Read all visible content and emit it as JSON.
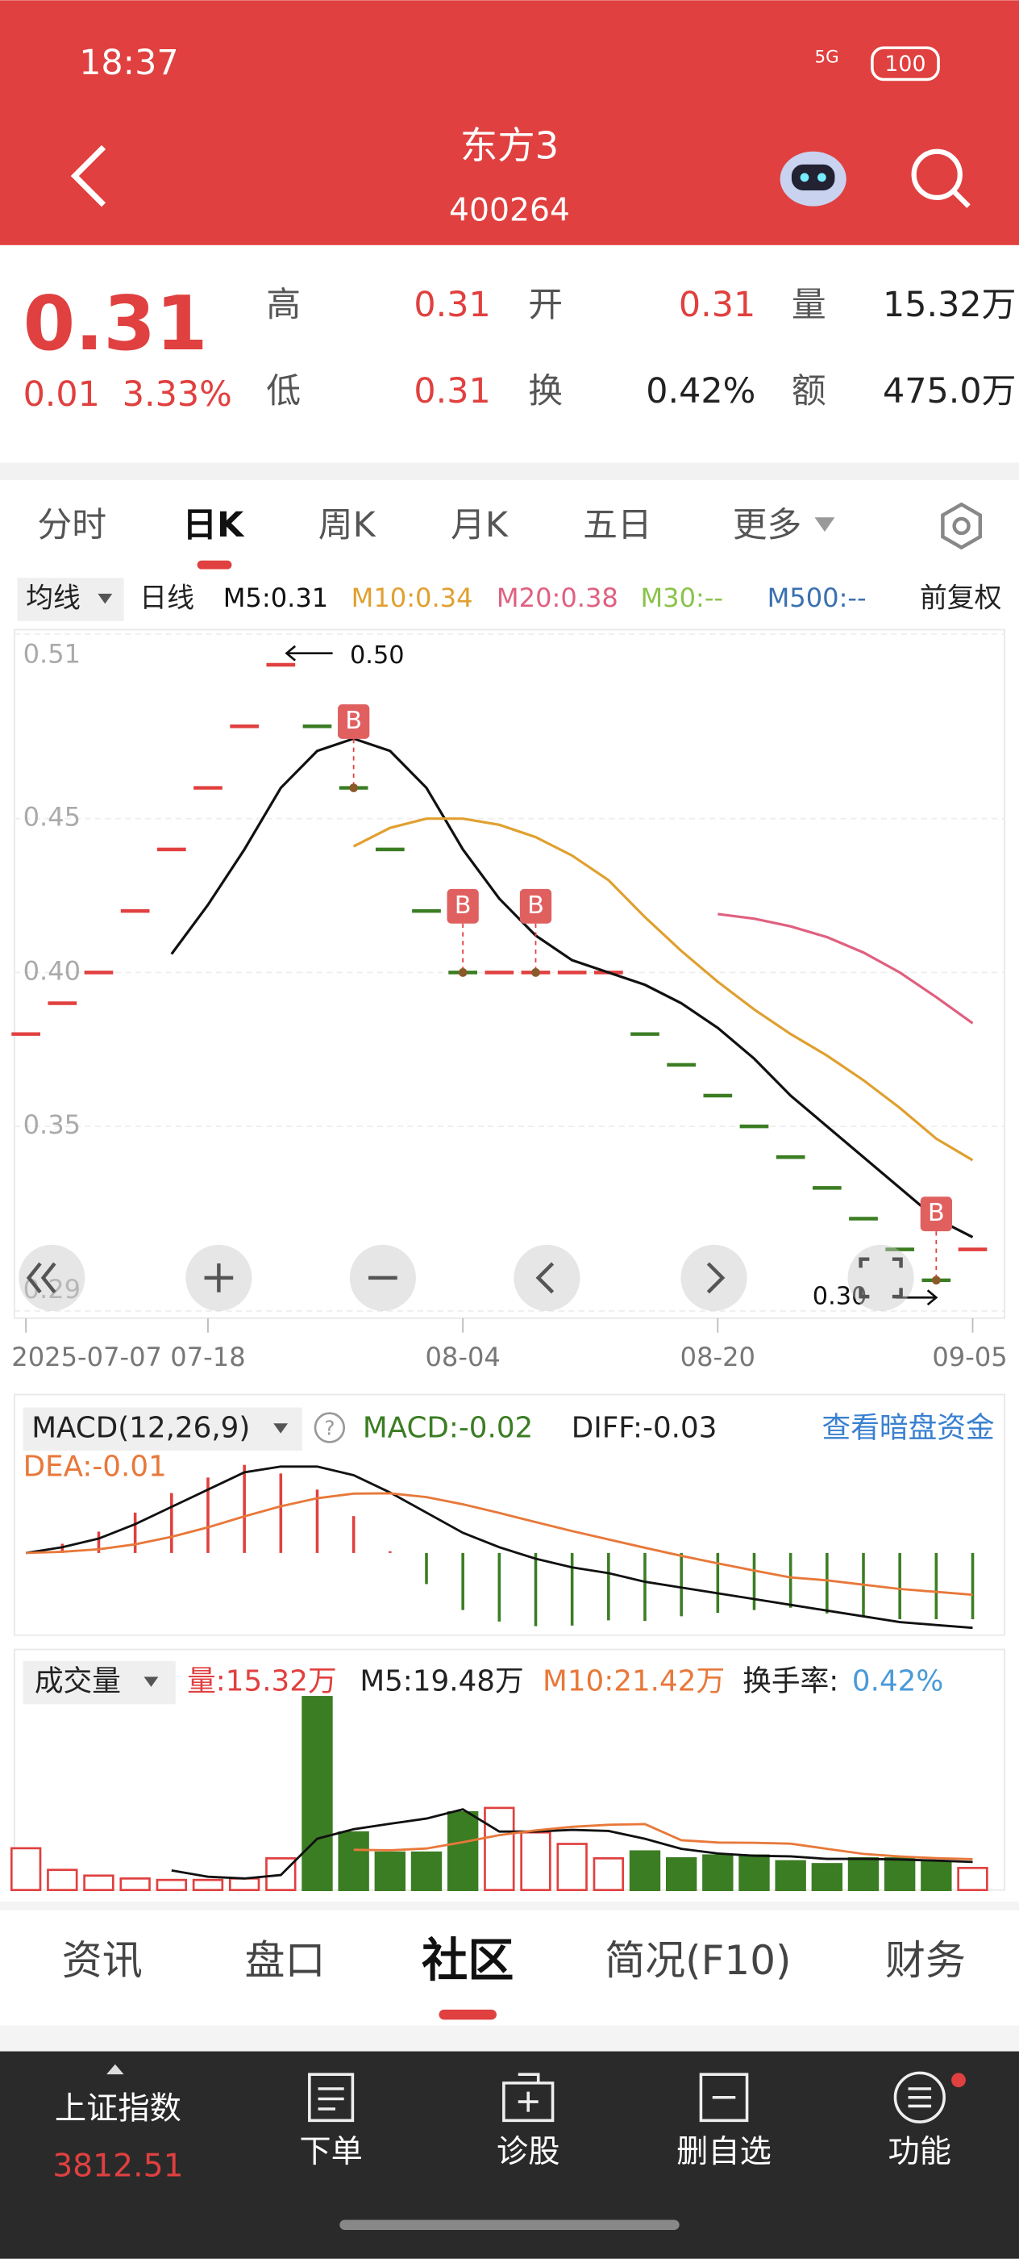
{
  "status_bar": {
    "time": "18:37",
    "network": "5G",
    "battery": "100"
  },
  "header": {
    "title": "东方3",
    "code": "400264"
  },
  "quote": {
    "price": "0.31",
    "change": "0.01",
    "change_pct": "3.33%",
    "fields": [
      {
        "label": "高",
        "value": "0.31"
      },
      {
        "label": "开",
        "value": "0.31"
      },
      {
        "label": "量",
        "value": "15.32万"
      },
      {
        "label": "低",
        "value": "0.31"
      },
      {
        "label": "换",
        "value": "0.42%"
      },
      {
        "label": "额",
        "value": "475.0万"
      }
    ]
  },
  "period_tabs": [
    "分时",
    "日K",
    "周K",
    "月K",
    "五日",
    "更多"
  ],
  "ma_legend": {
    "selector": "均线",
    "period": "日线",
    "items": [
      {
        "text": "M5:0.31",
        "color": "#111111"
      },
      {
        "text": "M10:0.34",
        "color": "#e0a030"
      },
      {
        "text": "M20:0.38",
        "color": "#e06080"
      },
      {
        "text": "M30:--",
        "color": "#8bc34a"
      },
      {
        "text": "M500:--",
        "color": "#3a70b0"
      }
    ],
    "adjust": "前复权"
  },
  "chart_data": {
    "type": "kline",
    "categories": [
      "2025-07-07",
      null,
      null,
      null,
      null,
      "07-18",
      null,
      null,
      null,
      null,
      null,
      null,
      "08-04",
      null,
      null,
      null,
      null,
      null,
      null,
      "08-20",
      null,
      null,
      null,
      null,
      null,
      null,
      "09-05"
    ],
    "closes": [
      0.38,
      0.39,
      0.4,
      0.42,
      0.44,
      0.46,
      0.48,
      0.5,
      0.48,
      0.46,
      0.44,
      0.42,
      0.4,
      0.4,
      0.4,
      0.4,
      0.4,
      0.38,
      0.37,
      0.36,
      0.35,
      0.34,
      0.33,
      0.32,
      0.31,
      0.3,
      0.31
    ],
    "up_color": "#e0403f",
    "down_color": "#3b7d23",
    "ylim": [
      0.29,
      0.51
    ],
    "yticks": [
      0.51,
      0.45,
      {
        "value": 0.4,
        "label": "0.40"
      },
      0.35,
      0.29
    ],
    "high": {
      "index": 7,
      "label": "0.50"
    },
    "low": {
      "index": 25,
      "label": "0.30"
    },
    "buy_points": [
      {
        "index": 9,
        "label": "B"
      },
      {
        "index": 12,
        "label": "B"
      },
      {
        "index": 14,
        "label": "B"
      },
      {
        "index": 25,
        "label": "B"
      }
    ],
    "ma": [
      {
        "name": "M5",
        "color": "#111111",
        "values": [
          null,
          null,
          null,
          null,
          0.406,
          0.422,
          0.44,
          0.46,
          0.472,
          0.476,
          0.472,
          0.46,
          0.44,
          0.424,
          0.412,
          0.404,
          0.4,
          0.396,
          0.39,
          0.382,
          0.372,
          0.36,
          0.35,
          0.34,
          0.33,
          0.32,
          0.314
        ]
      },
      {
        "name": "M10",
        "color": "#e0a030",
        "values": [
          null,
          null,
          null,
          null,
          null,
          null,
          null,
          null,
          null,
          0.441,
          0.447,
          0.45,
          0.45,
          0.448,
          0.444,
          0.438,
          0.43,
          0.418,
          0.407,
          0.397,
          0.388,
          0.38,
          0.373,
          0.365,
          0.356,
          0.346,
          0.339
        ]
      },
      {
        "name": "M20",
        "color": "#e06080",
        "values": [
          null,
          null,
          null,
          null,
          null,
          null,
          null,
          null,
          null,
          null,
          null,
          null,
          null,
          null,
          null,
          null,
          null,
          null,
          null,
          0.419,
          0.4175,
          0.415,
          0.4115,
          0.4065,
          0.4,
          0.392,
          0.3835
        ]
      }
    ]
  },
  "macd": {
    "title": "MACD(12,26,9)",
    "help": "?",
    "macd_label": "MACD:-0.02",
    "diff_label": "DIFF:-0.03",
    "dea_label": "DEA:-0.01",
    "link": "查看暗盘资金",
    "ylim": [
      -0.03,
      0.035
    ],
    "diff_color": "#111111",
    "dea_color": "#e8783a",
    "diff": [
      0,
      0.002,
      0.005,
      0.01,
      0.016,
      0.022,
      0.028,
      0.03,
      0.03,
      0.027,
      0.021,
      0.014,
      0.007,
      0.002,
      -0.002,
      -0.005,
      -0.007,
      -0.01,
      -0.012,
      -0.014,
      -0.016,
      -0.018,
      -0.02,
      -0.022,
      -0.024,
      -0.025,
      -0.026
    ],
    "dea": [
      0,
      0.0004,
      0.0013,
      0.003,
      0.0056,
      0.0089,
      0.0127,
      0.0162,
      0.019,
      0.0206,
      0.0207,
      0.0194,
      0.0169,
      0.0139,
      0.0107,
      0.0076,
      0.0047,
      0.0018,
      -0.001,
      -0.0036,
      -0.0061,
      -0.0085,
      -0.0095,
      -0.011,
      -0.0125,
      -0.0135,
      -0.0145
    ],
    "hist": [
      0,
      0.0032,
      0.0074,
      0.014,
      0.0208,
      0.0262,
      0.0306,
      0.0276,
      0.022,
      0.0128,
      0.0006,
      -0.0108,
      -0.0198,
      -0.0238,
      -0.0254,
      -0.0252,
      -0.0234,
      -0.0236,
      -0.022,
      -0.0208,
      -0.0198,
      -0.019,
      -0.021,
      -0.022,
      -0.023,
      -0.023,
      -0.023
    ]
  },
  "volume": {
    "title": "成交量",
    "vol_label": "量:15.32万",
    "ma5_label": "M5:19.48万",
    "ma10_label": "M10:21.42万",
    "turnover_label": "换手率:",
    "turnover": "0.42%",
    "ylim": [
      0,
      140
    ],
    "ma5_color": "#111111",
    "ma10_color": "#e8783a",
    "values": [
      29,
      14,
      10,
      8,
      7,
      7,
      8,
      22,
      134,
      40,
      26,
      26,
      54,
      57,
      40,
      32,
      22,
      26.8,
      22,
      24,
      24,
      20,
      18,
      22,
      22,
      20.08,
      15.32
    ],
    "ma5": [
      null,
      null,
      null,
      null,
      13.6,
      9.2,
      8,
      10.4,
      35.6,
      42.2,
      46,
      49.6,
      56,
      40.6,
      40.6,
      41.8,
      41,
      35.56,
      28.56,
      25.36,
      23.76,
      23.36,
      21.6,
      21.6,
      21.2,
      20.42,
      19.48
    ],
    "ma10": [
      null,
      null,
      null,
      null,
      null,
      null,
      null,
      null,
      null,
      27.9,
      27.6,
      28.8,
      33.2,
      38.1,
      41.4,
      43.9,
      45.3,
      45.78,
      34.58,
      32.98,
      32.78,
      32.18,
      28.58,
      25.08,
      23.28,
      22.09,
      21.42
    ]
  },
  "bottom_tabs": [
    "资讯",
    "盘口",
    "社区",
    "简况(F10)",
    "财务"
  ],
  "nav": {
    "index_name": "上证指数",
    "index_value": "3812.51",
    "items": [
      "下单",
      "诊股",
      "删自选",
      "功能"
    ]
  }
}
